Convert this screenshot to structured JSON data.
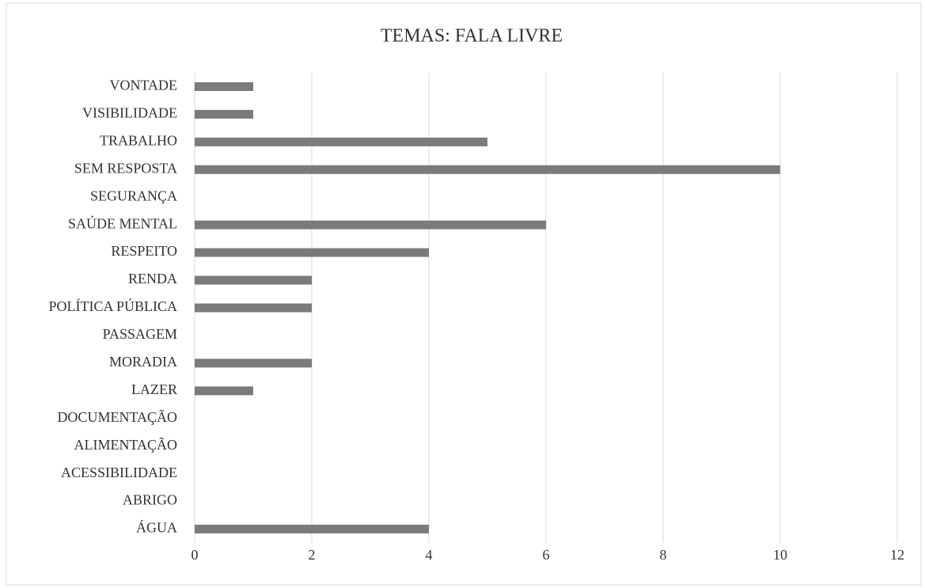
{
  "chart_data": {
    "type": "bar",
    "orientation": "horizontal",
    "title": "TEMAS: FALA LIVRE",
    "categories": [
      "VONTADE",
      "VISIBILIDADE",
      "TRABALHO",
      "SEM RESPOSTA",
      "SEGURANÇA",
      "SAÚDE MENTAL",
      "RESPEITO",
      "RENDA",
      "POLÍTICA PÚBLICA",
      "PASSAGEM",
      "MORADIA",
      "LAZER",
      "DOCUMENTAÇÃO",
      "ALIMENTAÇÃO",
      "ACESSIBILIDADE",
      "ABRIGO",
      "ÁGUA"
    ],
    "values": [
      1,
      1,
      5,
      10,
      0,
      6,
      4,
      2,
      2,
      0,
      2,
      1,
      0,
      0,
      0,
      0,
      4
    ],
    "color": "#7b7b7b",
    "xlim": [
      0,
      12
    ],
    "xticks": [
      0,
      2,
      4,
      6,
      8,
      10,
      12
    ],
    "grid": true
  }
}
